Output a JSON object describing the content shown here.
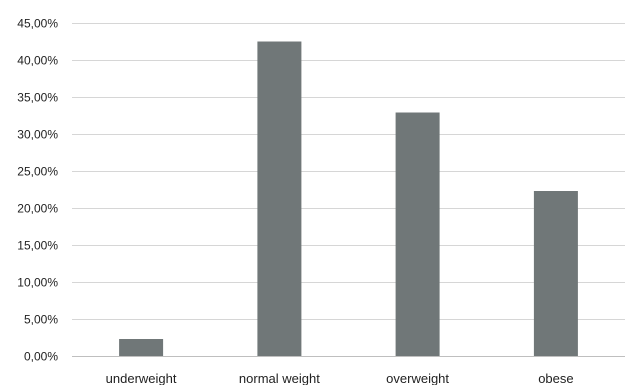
{
  "chart_data": {
    "type": "bar",
    "title": "",
    "xlabel": "",
    "ylabel": "",
    "categories": [
      "underweight",
      "normal weight",
      "overweight",
      "obese"
    ],
    "values": [
      2.3,
      42.5,
      32.9,
      22.3
    ],
    "value_unit": "%",
    "ylim": [
      0,
      45
    ],
    "yticks": [
      0,
      5,
      10,
      15,
      20,
      25,
      30,
      35,
      40,
      45
    ],
    "ytick_labels": [
      "0,00%",
      "5,00%",
      "10,00%",
      "15,00%",
      "20,00%",
      "25,00%",
      "30,00%",
      "35,00%",
      "40,00%",
      "45,00%"
    ],
    "grid": true,
    "legend": "none",
    "bar_color": "#707778"
  }
}
